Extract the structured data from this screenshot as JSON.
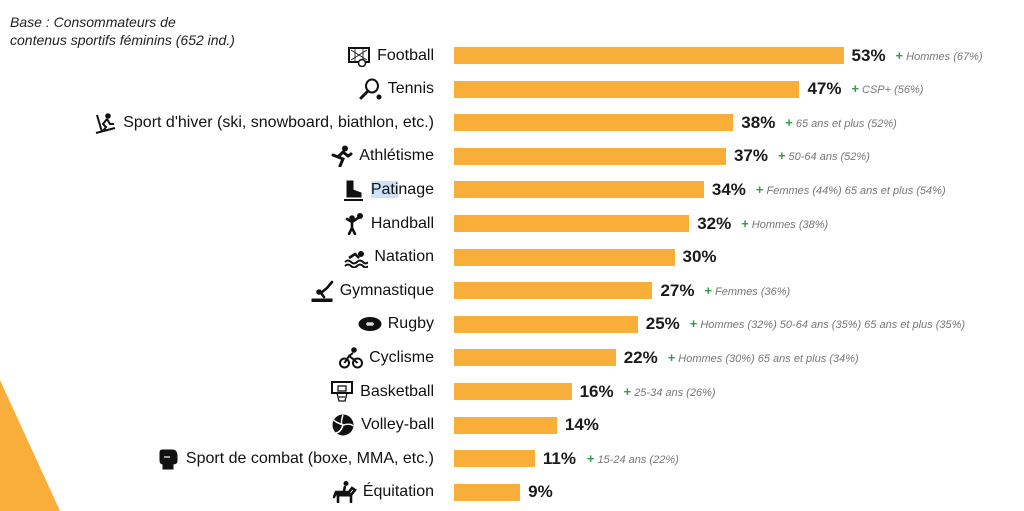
{
  "base_note": {
    "line1": "Base : Consommateurs de",
    "line2": "contenus sportifs féminins (652 ind.)"
  },
  "colors": {
    "bar": "#f9ae3a",
    "plus": "#2e9e4f",
    "corner": "#f9ae3a"
  },
  "chart_data": {
    "type": "bar",
    "orientation": "horizontal",
    "unit": "%",
    "categories": [
      "Football",
      "Tennis",
      "Sport d'hiver (ski, snowboard, biathlon, etc.)",
      "Athlétisme",
      "Patinage",
      "Handball",
      "Natation",
      "Gymnastique",
      "Rugby",
      "Cyclisme",
      "Basketball",
      "Volley-ball",
      "Sport de combat (boxe, MMA, etc.)",
      "Équitation"
    ],
    "values": [
      53,
      47,
      38,
      37,
      34,
      32,
      30,
      27,
      25,
      22,
      16,
      14,
      11,
      9
    ],
    "value_labels": [
      "53%",
      "47%",
      "38%",
      "37%",
      "34%",
      "32%",
      "30%",
      "27%",
      "25%",
      "22%",
      "16%",
      "14%",
      "11%",
      "9%"
    ],
    "plus_sign": "+",
    "annotations": [
      "Hommes (67%)",
      "CSP+ (56%)",
      "65 ans et plus (52%)",
      "50-64 ans (52%)",
      "Femmes (44%)  65 ans et plus (54%)",
      "Hommes (38%)",
      "",
      "Femmes (36%)",
      "Hommes (32%)  50-64 ans (35%)  65 ans et plus (35%)",
      "Hommes (30%)  65 ans et plus (34%)",
      "25-34 ans (26%)",
      "",
      "15-24 ans (22%)",
      ""
    ],
    "icons": [
      "soccer-goal-icon",
      "tennis-racket-icon",
      "skier-icon",
      "runner-icon",
      "ice-skate-icon",
      "handball-player-icon",
      "swimmer-icon",
      "gymnast-icon",
      "rugby-ball-icon",
      "cyclist-icon",
      "basketball-hoop-icon",
      "volleyball-icon",
      "boxing-glove-icon",
      "horse-rider-icon"
    ],
    "highlight": {
      "index": 4,
      "text": "Pati"
    }
  }
}
